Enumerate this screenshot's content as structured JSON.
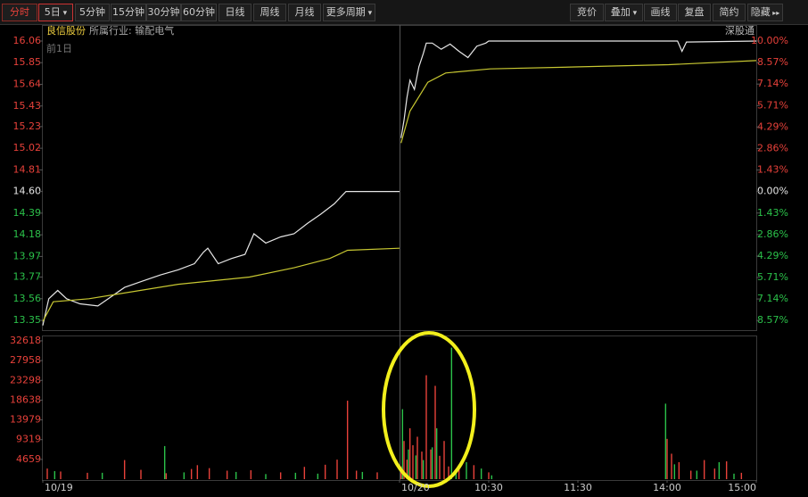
{
  "toolbar": {
    "left": [
      "分时",
      "5日",
      "5分钟",
      "15分钟",
      "30分钟",
      "60分钟",
      "日线",
      "周线",
      "月线",
      "更多周期"
    ],
    "right": [
      "竞价",
      "叠加",
      "画线",
      "复盘",
      "简约",
      "隐藏"
    ]
  },
  "header": {
    "stock": "良信股份",
    "industry": "所属行业: 输配电气",
    "period": "前1日",
    "channel": "深股通"
  },
  "chart_data": {
    "type": "line",
    "xlim": [
      0,
      480
    ],
    "xticks": [
      {
        "value": 0,
        "label": "10/19"
      },
      {
        "value": 240,
        "label": "10/20"
      },
      {
        "value": 300,
        "label": "10:30"
      },
      {
        "value": 360,
        "label": "11:30"
      },
      {
        "value": 420,
        "label": "14:00"
      },
      {
        "value": 480,
        "label": "15:00"
      }
    ],
    "ylim": [
      13.255,
      16.155
    ],
    "yticks": [
      {
        "value": 16.06,
        "label": "16.06"
      },
      {
        "value": 15.85,
        "label": "15.85"
      },
      {
        "value": 15.64,
        "label": "15.64"
      },
      {
        "value": 15.43,
        "label": "15.43"
      },
      {
        "value": 15.23,
        "label": "15.23"
      },
      {
        "value": 15.02,
        "label": "15.02"
      },
      {
        "value": 14.81,
        "label": "14.81"
      },
      {
        "value": 14.6,
        "label": "14.60"
      },
      {
        "value": 14.39,
        "label": "14.39"
      },
      {
        "value": 14.18,
        "label": "14.18"
      },
      {
        "value": 13.97,
        "label": "13.97"
      },
      {
        "value": 13.77,
        "label": "13.77"
      },
      {
        "value": 13.56,
        "label": "13.56"
      },
      {
        "value": 13.35,
        "label": "13.35"
      }
    ],
    "y2lim": [
      -9.21,
      10.65
    ],
    "y2ticks": [
      {
        "value": 10,
        "label": "10.00%"
      },
      {
        "value": 8.57,
        "label": "8.57%"
      },
      {
        "value": 7.14,
        "label": "7.14%"
      },
      {
        "value": 5.71,
        "label": "5.71%"
      },
      {
        "value": 4.29,
        "label": "4.29%"
      },
      {
        "value": 2.86,
        "label": "2.86%"
      },
      {
        "value": 1.43,
        "label": "1.43%"
      },
      {
        "value": 0,
        "label": "0.00%"
      },
      {
        "value": -1.43,
        "label": "1.43%"
      },
      {
        "value": -2.86,
        "label": "2.86%"
      },
      {
        "value": -4.29,
        "label": "4.29%"
      },
      {
        "value": -5.71,
        "label": "5.71%"
      },
      {
        "value": -7.14,
        "label": "7.14%"
      },
      {
        "value": -8.57,
        "label": "8.57%"
      }
    ],
    "series": [
      {
        "color": "#e6e6e6",
        "x": [
          0,
          4,
          10,
          16,
          25,
          37,
          46,
          55,
          67,
          79,
          91,
          102,
          108,
          111,
          118,
          127,
          136,
          142,
          150,
          160,
          169,
          178,
          187,
          196,
          204,
          240
        ],
        "values": [
          13.3,
          13.56,
          13.64,
          13.56,
          13.51,
          13.49,
          13.58,
          13.67,
          13.73,
          13.79,
          13.84,
          13.9,
          14.01,
          14.05,
          13.9,
          13.95,
          13.99,
          14.19,
          14.1,
          14.16,
          14.19,
          14.29,
          14.38,
          14.48,
          14.6,
          14.6
        ]
      },
      {
        "color": "#c8c832",
        "x": [
          0,
          7,
          31,
          91,
          139,
          169,
          193,
          205,
          240
        ],
        "values": [
          13.34,
          13.53,
          13.56,
          13.7,
          13.77,
          13.86,
          13.95,
          14.03,
          14.05
        ]
      },
      {
        "color": "#e6e6e6",
        "x": [
          241,
          243,
          245,
          247,
          250,
          253,
          256,
          258,
          262,
          268,
          274,
          280,
          286,
          292,
          298,
          300,
          427,
          430,
          433,
          480
        ],
        "values": [
          15.12,
          15.29,
          15.51,
          15.68,
          15.59,
          15.81,
          15.94,
          16.04,
          16.04,
          15.98,
          16.03,
          15.96,
          15.9,
          16.01,
          16.04,
          16.06,
          16.06,
          15.96,
          16.05,
          16.06
        ]
      },
      {
        "color": "#c8c832",
        "x": [
          241,
          247,
          253,
          259,
          271,
          301,
          361,
          421,
          480
        ],
        "values": [
          15.07,
          15.38,
          15.52,
          15.66,
          15.75,
          15.79,
          15.81,
          15.83,
          15.87
        ]
      }
    ],
    "volume": {
      "type": "bar",
      "ylim": [
        0,
        33450
      ],
      "yticks": [
        32618,
        27958,
        23298,
        18638,
        13979,
        9319,
        4659
      ],
      "series": [
        {
          "color": "#e8413a",
          "x": [
            3,
            12,
            30,
            55,
            66,
            83,
            100,
            104,
            112,
            124,
            140,
            160,
            176,
            190,
            198,
            205,
            211,
            225,
            241,
            243,
            245,
            247,
            249,
            252,
            255,
            258,
            261,
            264,
            267,
            270,
            273,
            280,
            290,
            300,
            420,
            423,
            428,
            436,
            445,
            452,
            460,
            470
          ],
          "values": [
            2500,
            1800,
            1500,
            4500,
            2200,
            1400,
            2400,
            3300,
            2600,
            2000,
            2100,
            1600,
            2900,
            3400,
            4600,
            18500,
            2000,
            1600,
            3000,
            9000,
            4600,
            12000,
            8000,
            10000,
            6500,
            24500,
            7000,
            22000,
            5500,
            9000,
            3000,
            2500,
            3300,
            1600,
            9500,
            6000,
            4000,
            2000,
            4500,
            2500,
            4200,
            1500
          ]
        },
        {
          "color": "#2bc24a",
          "x": [
            8,
            40,
            82,
            95,
            130,
            150,
            170,
            185,
            215,
            242,
            246,
            251,
            256,
            262,
            265,
            275,
            278,
            285,
            295,
            302,
            419,
            425,
            440,
            455,
            465
          ],
          "values": [
            1900,
            1500,
            7800,
            1600,
            1700,
            1200,
            1500,
            1300,
            1700,
            16500,
            7000,
            5600,
            4500,
            7500,
            12000,
            31000,
            2200,
            4000,
            2500,
            900,
            17800,
            3500,
            2000,
            4000,
            1300
          ]
        }
      ]
    }
  }
}
